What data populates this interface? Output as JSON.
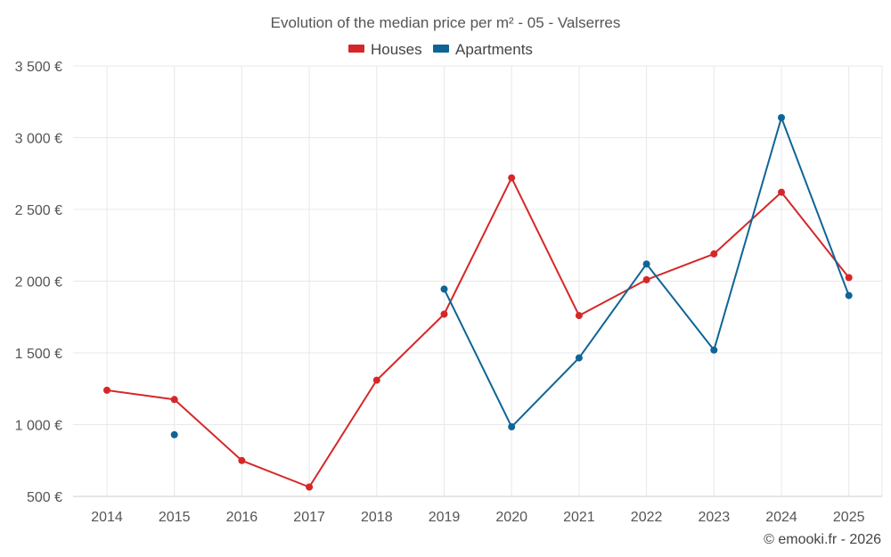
{
  "chart_data": {
    "type": "line",
    "title": "Evolution of the median price per m² - 05 - Valserres",
    "categories": [
      "2014",
      "2015",
      "2016",
      "2017",
      "2018",
      "2019",
      "2020",
      "2021",
      "2022",
      "2023",
      "2024",
      "2025"
    ],
    "series": [
      {
        "name": "Houses",
        "color": "#d62728",
        "values": [
          1240,
          1175,
          750,
          565,
          1310,
          1770,
          2720,
          1760,
          2010,
          2190,
          2620,
          2025
        ]
      },
      {
        "name": "Apartments",
        "color": "#0f6496",
        "values": [
          null,
          930,
          null,
          null,
          null,
          1945,
          985,
          1465,
          2120,
          1520,
          3140,
          1900
        ]
      }
    ],
    "ylim": [
      500,
      3500
    ],
    "yticks": [
      500,
      1000,
      1500,
      2000,
      2500,
      3000,
      3500
    ],
    "ytick_labels": [
      "500 €",
      "1 000 €",
      "1 500 €",
      "2 000 €",
      "2 500 €",
      "3 000 €",
      "3 500 €"
    ],
    "xlabel": "",
    "ylabel": "",
    "grid": true,
    "legend_position": "top-center"
  },
  "credit": "© emooki.fr - 2026"
}
